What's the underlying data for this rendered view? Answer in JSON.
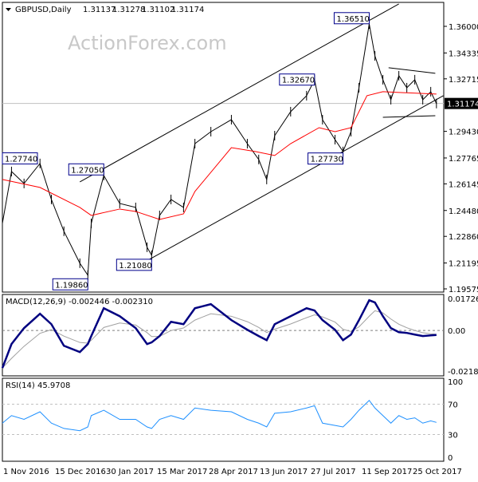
{
  "chart_data": [
    {
      "type": "line",
      "symbol": "GBPUSD,Daily",
      "ohlc": [
        "1.31137",
        "1.31278",
        "1.31102",
        "1.31174"
      ],
      "watermark": "ActionForex.com",
      "ylim": [
        1.19575,
        1.36
      ],
      "yticks": [
        "1.36000",
        "1.34335",
        "1.32715",
        "1.29430",
        "1.27765",
        "1.26145",
        "1.24480",
        "1.22860",
        "1.21195",
        "1.19575"
      ],
      "current_price": "1.31174",
      "xticks": [
        {
          "date": "2016-11-01",
          "label": "1 Nov 2016"
        },
        {
          "date": "2016-12-15",
          "label": "15 Dec 2016"
        },
        {
          "date": "2017-01-30",
          "label": "30 Jan 2017"
        },
        {
          "date": "2017-03-15",
          "label": "15 Mar 2017"
        },
        {
          "date": "2017-04-28",
          "label": "28 Apr 2017"
        },
        {
          "date": "2017-06-13",
          "label": "13 Jun 2017"
        },
        {
          "date": "2017-07-27",
          "label": "27 Jul 2017"
        },
        {
          "date": "2017-09-11",
          "label": "11 Sep 2017"
        },
        {
          "date": "2017-10-25",
          "label": "25 Oct 2017"
        }
      ],
      "dates": [
        "2016-11-01",
        "2016-11-09",
        "2016-11-20",
        "2016-12-04",
        "2016-12-14",
        "2016-12-25",
        "2017-01-08",
        "2017-01-15",
        "2017-01-18",
        "2017-01-29",
        "2017-02-12",
        "2017-02-26",
        "2017-03-08",
        "2017-03-12",
        "2017-03-19",
        "2017-03-29",
        "2017-04-09",
        "2017-04-19",
        "2017-05-03",
        "2017-05-21",
        "2017-06-04",
        "2017-06-14",
        "2017-06-21",
        "2017-06-28",
        "2017-07-12",
        "2017-07-26",
        "2017-08-02",
        "2017-08-09",
        "2017-08-20",
        "2017-08-27",
        "2017-09-03",
        "2017-09-10",
        "2017-09-19",
        "2017-09-24",
        "2017-10-01",
        "2017-10-08",
        "2017-10-15",
        "2017-10-22",
        "2017-10-29",
        "2017-11-05",
        "2017-11-12",
        "2017-11-17"
      ],
      "series": [
        {
          "values": [
            1.2367,
            1.2692,
            1.2617,
            1.2742,
            1.2517,
            1.2318,
            1.2118,
            1.2043,
            1.2367,
            1.2667,
            1.2492,
            1.2467,
            1.2218,
            1.2168,
            1.2417,
            1.2517,
            1.2467,
            1.2866,
            1.2941,
            1.3016,
            1.2866,
            1.2767,
            1.2642,
            1.2916,
            1.3066,
            1.3166,
            1.3266,
            1.3016,
            1.2891,
            1.2817,
            1.2941,
            1.3216,
            1.3615,
            1.3415,
            1.3266,
            1.3141,
            1.3291,
            1.3216,
            1.3266,
            1.3141,
            1.3191,
            1.3117
          ],
          "color": "#000000"
        }
      ],
      "moving_average": {
        "color": "#ff0000",
        "points": [
          [
            "2016-11-01",
            1.2642
          ],
          [
            "2016-12-04",
            1.2592
          ],
          [
            "2017-01-08",
            1.2467
          ],
          [
            "2017-01-18",
            1.2417
          ],
          [
            "2017-02-12",
            1.2457
          ],
          [
            "2017-02-26",
            1.2442
          ],
          [
            "2017-03-19",
            1.2392
          ],
          [
            "2017-04-09",
            1.2427
          ],
          [
            "2017-04-19",
            1.2567
          ],
          [
            "2017-05-21",
            1.2841
          ],
          [
            "2017-06-11",
            1.2817
          ],
          [
            "2017-06-28",
            1.2792
          ],
          [
            "2017-07-12",
            1.2866
          ],
          [
            "2017-08-06",
            1.2966
          ],
          [
            "2017-08-20",
            1.2941
          ],
          [
            "2017-09-03",
            1.2966
          ],
          [
            "2017-09-17",
            1.3166
          ],
          [
            "2017-10-01",
            1.3191
          ],
          [
            "2017-11-17",
            1.3176
          ]
        ]
      },
      "annotations": [
        {
          "label": "1.27740",
          "date": "2016-11-01",
          "value": 1.2774,
          "side": "left"
        },
        {
          "label": "1.27050",
          "date": "2017-01-29",
          "value": 1.2705,
          "side": "right"
        },
        {
          "label": "1.19860",
          "date": "2017-01-15",
          "value": 1.1986,
          "side": "right"
        },
        {
          "label": "1.21080",
          "date": "2017-03-12",
          "value": 1.2108,
          "side": "right"
        },
        {
          "label": "1.32670",
          "date": "2017-08-02",
          "value": 1.3267,
          "side": "right"
        },
        {
          "label": "1.27730",
          "date": "2017-08-27",
          "value": 1.2773,
          "side": "right"
        },
        {
          "label": "1.36510",
          "date": "2017-09-19",
          "value": 1.3651,
          "side": "right"
        }
      ],
      "trendlines": [
        [
          [
            "2017-01-08",
            1.2627
          ],
          [
            "2017-10-15",
            1.374
          ]
        ],
        [
          [
            "2017-03-04",
            1.2118
          ],
          [
            "2017-11-23",
            1.3166
          ]
        ],
        [
          [
            "2017-10-06",
            1.3341
          ],
          [
            "2017-11-16",
            1.3306
          ]
        ],
        [
          [
            "2017-10-01",
            1.3031
          ],
          [
            "2017-11-16",
            1.3041
          ]
        ]
      ]
    },
    {
      "type": "line",
      "title": "MACD(12,26,9) -0.002446 -0.002310",
      "ylim": [
        -0.021852,
        0.017267
      ],
      "yticks": [
        "0.017267",
        "0.00",
        "-0.021852"
      ],
      "macd_color": "#000080",
      "signal_color": "#a0a0a0",
      "values": [
        -0.0202,
        -0.0073,
        0.0013,
        0.009,
        0.0034,
        -0.0082,
        -0.0116,
        -0.0073,
        -0.003,
        0.012,
        0.0077,
        0.0013,
        -0.0073,
        -0.0064,
        -0.003,
        0.0047,
        0.0034,
        0.012,
        0.0142,
        0.0056,
        0.0004,
        -0.003,
        -0.0052,
        0.0034,
        0.0077,
        0.012,
        0.0108,
        0.0056,
        0.0004,
        -0.0052,
        -0.0022,
        0.0056,
        0.0163,
        0.0151,
        0.0077,
        0.0013,
        -0.0009,
        -0.0013,
        -0.0022,
        -0.003,
        -0.0026,
        -0.0024
      ]
    },
    {
      "type": "line",
      "title": "RSI(14) 45.9708",
      "ylim": [
        0,
        100
      ],
      "yticks": [
        "100",
        "70",
        "30",
        "0"
      ],
      "color": "#1e90ff",
      "values": [
        45,
        55,
        50,
        60,
        45,
        38,
        35,
        40,
        55,
        62,
        50,
        50,
        40,
        38,
        50,
        55,
        50,
        65,
        62,
        60,
        50,
        45,
        40,
        58,
        60,
        65,
        68,
        45,
        42,
        40,
        50,
        62,
        75,
        65,
        55,
        45,
        55,
        50,
        52,
        45,
        48,
        46
      ]
    }
  ]
}
